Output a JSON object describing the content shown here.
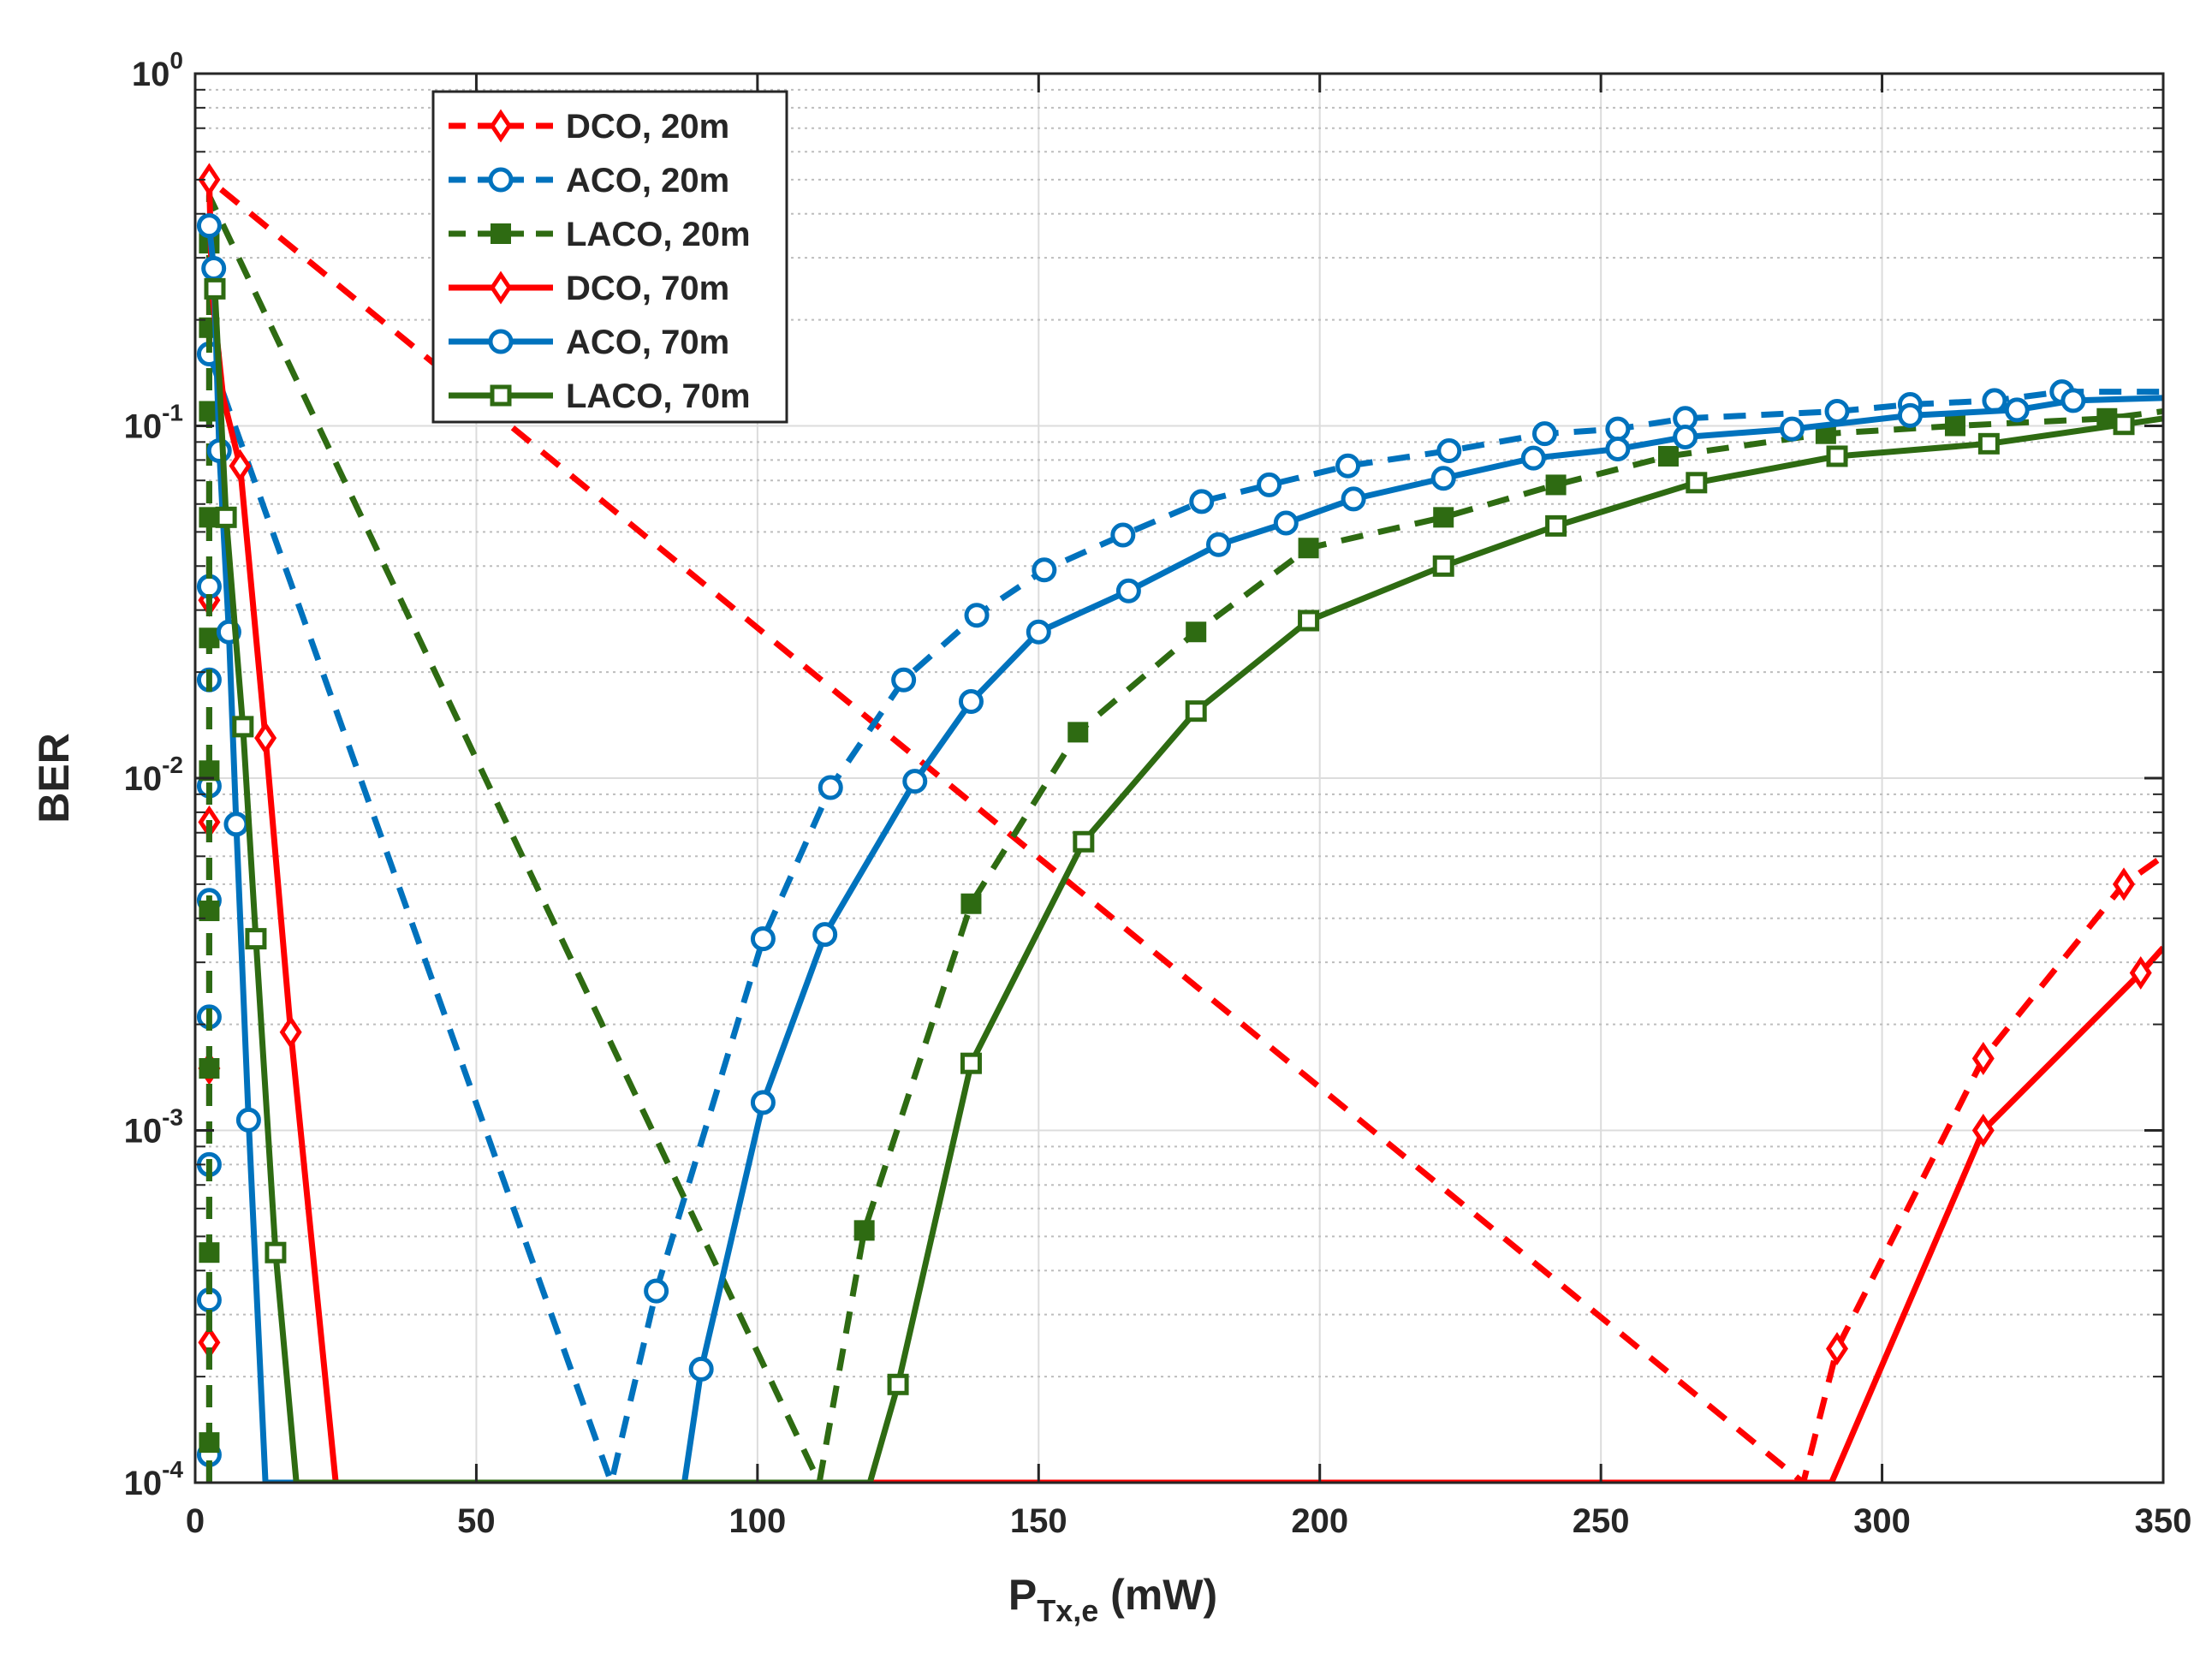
{
  "chart_data": {
    "type": "line",
    "title": "",
    "xlabel": "P",
    "xlabel_sub": "Tx,e",
    "xlabel_unit": " (mW)",
    "ylabel": "BER",
    "xlim": [
      0,
      350
    ],
    "ylim": [
      0.0001,
      1
    ],
    "yscale": "log",
    "grid": true,
    "legend_position": "top-left",
    "x_ticks": [
      0,
      50,
      100,
      150,
      200,
      250,
      300,
      350
    ],
    "x_tick_labels": [
      "0",
      "50",
      "100",
      "150",
      "200",
      "250",
      "300",
      "350"
    ],
    "y_ticks": [
      {
        "value": 1,
        "base": "10",
        "exp": "0"
      },
      {
        "value": 0.1,
        "base": "10",
        "exp": "-1"
      },
      {
        "value": 0.01,
        "base": "10",
        "exp": "-2"
      },
      {
        "value": 0.001,
        "base": "10",
        "exp": "-3"
      },
      {
        "value": 0.0001,
        "base": "10",
        "exp": "-4"
      }
    ],
    "series": [
      {
        "name": "DCO, 20m",
        "color": "#ff0000",
        "dash": true,
        "marker": "diamond-open",
        "x": [
          2.5,
          2.5,
          2.5,
          2.5,
          2.5,
          2.5,
          286,
          292,
          318,
          343,
          350
        ],
        "y": [
          0.0001,
          0.00025,
          0.0015,
          0.0075,
          0.032,
          0.5,
          0.0001,
          0.00024,
          0.0016,
          0.005,
          0.006
        ],
        "marker_x": [
          2.5,
          2.5,
          2.5,
          2.5,
          292,
          318,
          343
        ],
        "marker_y": [
          0.00025,
          0.0015,
          0.0075,
          0.032,
          0.00024,
          0.0016,
          0.005
        ]
      },
      {
        "name": "ACO, 20m",
        "color": "#0072bd",
        "dash": true,
        "marker": "circle-open",
        "x": [
          2.5,
          2.5,
          2.5,
          2.5,
          2.5,
          2.5,
          2.5,
          2.5,
          2.5,
          2.5,
          74,
          82,
          101,
          113,
          126,
          139,
          151,
          165,
          179,
          191,
          205,
          223,
          240,
          253,
          265,
          292,
          305,
          320,
          332,
          350
        ],
        "y": [
          0.0001,
          0.00012,
          0.00033,
          0.0008,
          0.0021,
          0.0045,
          0.0095,
          0.019,
          0.035,
          0.16,
          0.0001,
          0.00035,
          0.0035,
          0.0094,
          0.019,
          0.029,
          0.039,
          0.049,
          0.061,
          0.068,
          0.077,
          0.085,
          0.095,
          0.098,
          0.105,
          0.11,
          0.115,
          0.118,
          0.125,
          0.125
        ],
        "marker_x": [
          2.5,
          2.5,
          2.5,
          2.5,
          2.5,
          2.5,
          2.5,
          2.5,
          2.5,
          82,
          101,
          113,
          126,
          139,
          151,
          165,
          179,
          191,
          205,
          223,
          240,
          253,
          265,
          292,
          305,
          320,
          332
        ],
        "marker_y": [
          0.00012,
          0.00033,
          0.0008,
          0.0021,
          0.0045,
          0.0095,
          0.019,
          0.035,
          0.16,
          0.00035,
          0.0035,
          0.0094,
          0.019,
          0.029,
          0.039,
          0.049,
          0.061,
          0.068,
          0.077,
          0.085,
          0.095,
          0.098,
          0.105,
          0.11,
          0.115,
          0.118,
          0.125
        ]
      },
      {
        "name": "LACO, 20m",
        "color": "#2e6b12",
        "dash": true,
        "marker": "square-filled",
        "x": [
          2.5,
          2.5,
          2.5,
          2.5,
          2.5,
          2.5,
          2.5,
          2.5,
          2.5,
          2.5,
          2.5,
          2.5,
          111,
          119,
          138,
          157,
          178,
          198,
          222,
          242,
          262,
          290,
          313,
          340,
          350
        ],
        "y": [
          0.0001,
          0.00013,
          0.00045,
          0.0015,
          0.0042,
          0.0105,
          0.025,
          0.055,
          0.11,
          0.19,
          0.33,
          0.45,
          0.0001,
          0.00052,
          0.0044,
          0.0135,
          0.026,
          0.045,
          0.055,
          0.068,
          0.082,
          0.095,
          0.1,
          0.105,
          0.11
        ],
        "marker_x": [
          2.5,
          2.5,
          2.5,
          2.5,
          2.5,
          2.5,
          2.5,
          2.5,
          2.5,
          2.5,
          119,
          138,
          157,
          178,
          198,
          222,
          242,
          262,
          290,
          313,
          340
        ],
        "marker_y": [
          0.00013,
          0.00045,
          0.0015,
          0.0042,
          0.0105,
          0.025,
          0.055,
          0.11,
          0.19,
          0.33,
          0.00052,
          0.0044,
          0.0135,
          0.026,
          0.045,
          0.055,
          0.068,
          0.082,
          0.095,
          0.1,
          0.105
        ]
      },
      {
        "name": "DCO, 70m",
        "color": "#ff0000",
        "dash": false,
        "marker": "diamond-open",
        "x": [
          2.5,
          3,
          5,
          8,
          12.5,
          17,
          25,
          291,
          318,
          346,
          350
        ],
        "y": [
          0.5,
          0.24,
          0.12,
          0.077,
          0.013,
          0.0019,
          0.0001,
          0.0001,
          0.001,
          0.0028,
          0.0033
        ],
        "marker_x": [
          2.5,
          8,
          12.5,
          17,
          318,
          346
        ],
        "marker_y": [
          0.5,
          0.077,
          0.013,
          0.0019,
          0.001,
          0.0028
        ]
      },
      {
        "name": "ACO, 70m",
        "color": "#0072bd",
        "dash": false,
        "marker": "circle-open",
        "x": [
          2.5,
          3.3,
          4.3,
          6,
          7.3,
          9.5,
          12.5,
          87,
          90,
          101,
          112,
          128,
          138,
          150,
          166,
          182,
          194,
          206,
          222,
          238,
          253,
          265,
          284,
          305,
          324,
          334,
          350
        ],
        "y": [
          0.37,
          0.28,
          0.085,
          0.026,
          0.0074,
          0.00107,
          0.0001,
          0.0001,
          0.00021,
          0.0012,
          0.0036,
          0.0098,
          0.0165,
          0.026,
          0.034,
          0.046,
          0.053,
          0.062,
          0.071,
          0.081,
          0.086,
          0.093,
          0.098,
          0.107,
          0.111,
          0.118,
          0.12
        ],
        "marker_x": [
          2.5,
          3.3,
          4.3,
          6,
          7.3,
          9.5,
          90,
          101,
          112,
          128,
          138,
          150,
          166,
          182,
          194,
          206,
          222,
          238,
          253,
          265,
          284,
          305,
          324,
          334
        ],
        "marker_y": [
          0.37,
          0.28,
          0.085,
          0.026,
          0.0074,
          0.00107,
          0.00021,
          0.0012,
          0.0036,
          0.0098,
          0.0165,
          0.026,
          0.034,
          0.046,
          0.053,
          0.062,
          0.071,
          0.081,
          0.086,
          0.093,
          0.098,
          0.107,
          0.111,
          0.118
        ]
      },
      {
        "name": "LACO, 70m",
        "color": "#2e6b12",
        "dash": false,
        "marker": "square-open",
        "x": [
          3.5,
          5.5,
          8.5,
          10.8,
          14.3,
          18,
          120,
          125,
          138,
          158,
          178,
          198,
          222,
          242,
          267,
          292,
          319,
          343,
          350
        ],
        "y": [
          0.245,
          0.055,
          0.014,
          0.0035,
          0.00045,
          0.0001,
          0.0001,
          0.00019,
          0.00155,
          0.0066,
          0.0155,
          0.028,
          0.04,
          0.052,
          0.069,
          0.082,
          0.089,
          0.101,
          0.105
        ],
        "marker_x": [
          3.5,
          5.5,
          8.5,
          10.8,
          14.3,
          125,
          138,
          158,
          178,
          198,
          222,
          242,
          267,
          292,
          319,
          343
        ],
        "marker_y": [
          0.245,
          0.055,
          0.014,
          0.0035,
          0.00045,
          0.00019,
          0.00155,
          0.0066,
          0.0155,
          0.028,
          0.04,
          0.052,
          0.069,
          0.082,
          0.089,
          0.101
        ]
      }
    ]
  }
}
